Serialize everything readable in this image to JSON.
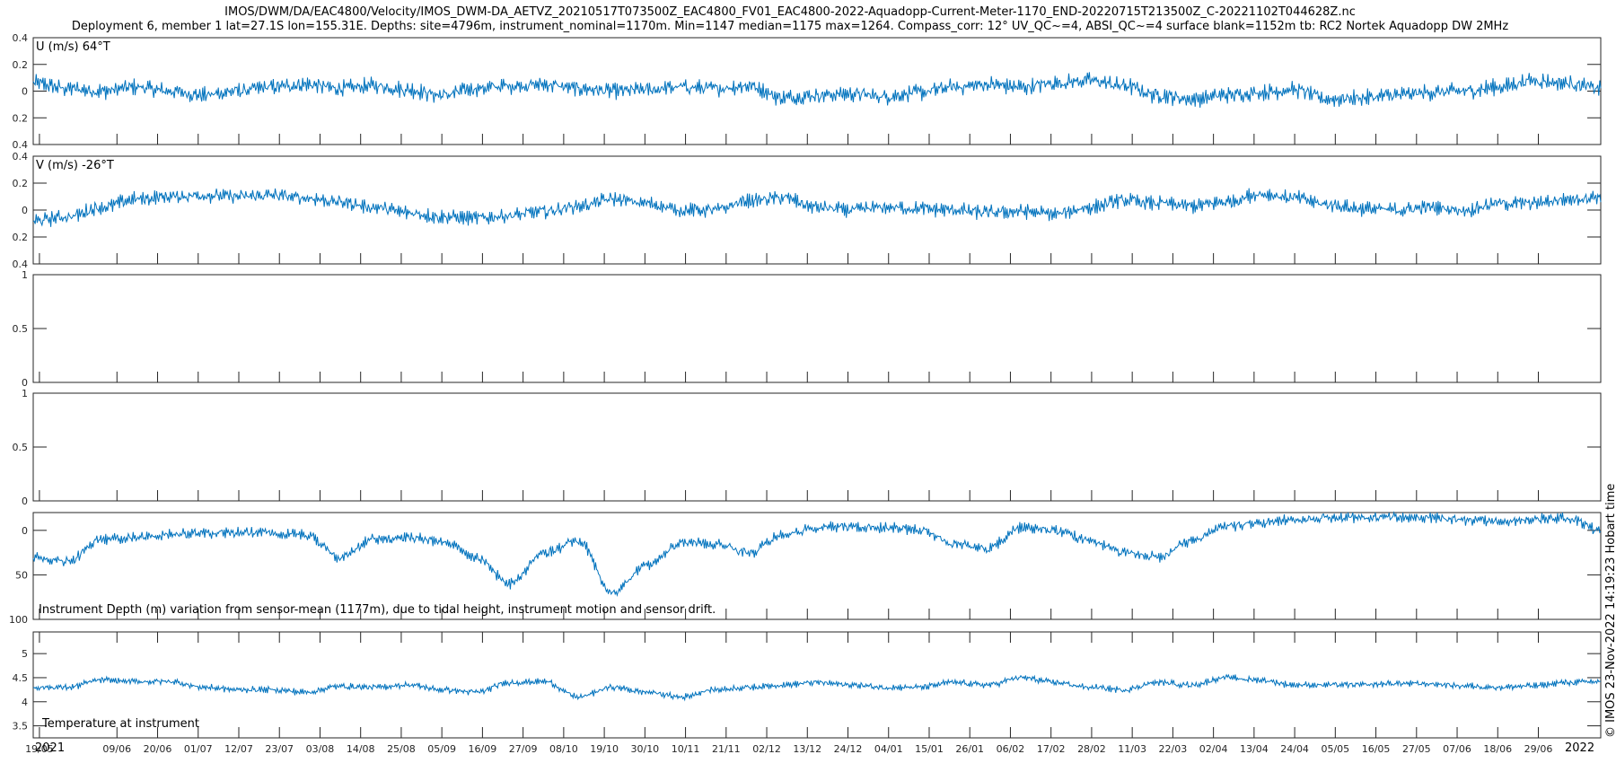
{
  "window": {
    "title_line1": "IMOS/DWM/DA/EAC4800/Velocity/IMOS_DWM-DA_AETVZ_20210517T073500Z_EAC4800_FV01_EAC4800-2022-Aquadopp-Current-Meter-1170_END-20220715T213500Z_C-20221102T044628Z.nc",
    "title_line2": "Deployment 6, member 1 lat=27.1S lon=155.31E. Depths: site=4796m, instrument_nominal=1170m. Min=1147 median=1175 max=1264. Compass_corr: 12° UV_QC~=4, ABSI_QC~=4 surface blank=1152m tb: RC2 Nortek Aquadopp DW 2MHz",
    "credit": "© IMOS 23-Nov-2022 14:19:23 Hobart time"
  },
  "colors": {
    "series": "#0072BD",
    "axes": "#262626",
    "background": "#ffffff"
  },
  "chart_data": [
    {
      "type": "line",
      "label": "U (m/s) 64°T",
      "ylim": [
        -0.4,
        0.4
      ],
      "yticks": [
        -0.4,
        -0.2,
        0,
        0.2,
        0.4
      ],
      "yticklabels": [
        "0.4",
        "0.2",
        "0",
        "0.2",
        "0.4"
      ],
      "x_start": "2021-05-17",
      "x_end": "2022-07-15",
      "series": [
        {
          "values": [
            0.06,
            0.02,
            0.0,
            0.03,
            0.0,
            -0.03,
            0.0,
            0.03,
            0.05,
            0.02,
            0.04,
            0.01,
            -0.03,
            0.02,
            0.04,
            0.05,
            0.02,
            0.0,
            0.01,
            0.03,
            0.02,
            0.04,
            -0.05,
            -0.03,
            -0.02,
            -0.04,
            -0.01,
            0.03,
            0.05,
            0.03,
            0.06,
            0.08,
            0.04,
            -0.03,
            -0.06,
            -0.03,
            -0.01,
            0.01,
            -0.06,
            -0.05,
            -0.03,
            -0.01,
            0.0,
            0.03,
            0.08,
            0.06,
            0.02
          ]
        }
      ]
    },
    {
      "type": "line",
      "label": "V (m/s) -26°T",
      "ylim": [
        -0.4,
        0.4
      ],
      "yticks": [
        -0.4,
        -0.2,
        0,
        0.2,
        0.4
      ],
      "yticklabels": [
        "0.4",
        "0.2",
        "0",
        "0.2",
        "0.4"
      ],
      "x_start": "2021-05-17",
      "x_end": "2022-07-15",
      "series": [
        {
          "values": [
            -0.08,
            -0.05,
            0.02,
            0.08,
            0.1,
            0.11,
            0.1,
            0.11,
            0.09,
            0.06,
            0.02,
            -0.02,
            -0.05,
            -0.06,
            -0.04,
            -0.01,
            0.03,
            0.08,
            0.05,
            0.0,
            0.0,
            0.07,
            0.09,
            0.02,
            0.0,
            0.02,
            0.01,
            0.0,
            -0.02,
            -0.01,
            -0.03,
            0.02,
            0.07,
            0.05,
            0.03,
            0.06,
            0.12,
            0.09,
            0.04,
            0.01,
            0.0,
            0.02,
            0.0,
            0.05,
            0.05,
            0.08,
            0.1
          ]
        }
      ]
    },
    {
      "type": "line",
      "label": "",
      "ylim": [
        0,
        1
      ],
      "yticks": [
        0,
        0.5,
        1
      ],
      "yticklabels": [
        "0",
        "0.5",
        "1"
      ],
      "series": []
    },
    {
      "type": "line",
      "label": "",
      "ylim": [
        0,
        1
      ],
      "yticks": [
        0,
        0.5,
        1
      ],
      "yticklabels": [
        "0",
        "0.5",
        "1"
      ],
      "series": []
    },
    {
      "type": "line",
      "label": "Instrument Depth (m) variation from sensor-mean (1177m), due to tidal height, instrument motion and sensor drift.",
      "ylim": [
        -20,
        100
      ],
      "y_reversed": true,
      "yticks": [
        0,
        50,
        100
      ],
      "yticklabels": [
        "0",
        "50",
        "100"
      ],
      "x_start": "2021-05-17",
      "x_end": "2022-07-15",
      "series": [
        {
          "values": [
            30,
            35,
            10,
            8,
            5,
            3,
            2,
            3,
            5,
            30,
            10,
            8,
            12,
            30,
            60,
            25,
            12,
            70,
            40,
            15,
            15,
            25,
            5,
            -3,
            -4,
            -3,
            0,
            15,
            20,
            -3,
            0,
            12,
            25,
            30,
            12,
            -5,
            -8,
            -12,
            -14,
            -15,
            -15,
            -14,
            -12,
            -10,
            -12,
            -14,
            0
          ]
        }
      ]
    },
    {
      "type": "line",
      "label": "Temperature at instrument",
      "ylim": [
        3.25,
        5.45
      ],
      "yticks": [
        3.5,
        4,
        4.5,
        5
      ],
      "yticklabels": [
        "3.5",
        "4",
        "4.5",
        "5"
      ],
      "x_start": "2021-05-17",
      "x_end": "2022-07-15",
      "series": [
        {
          "values": [
            4.3,
            4.3,
            4.45,
            4.42,
            4.42,
            4.3,
            4.25,
            4.25,
            4.2,
            4.32,
            4.3,
            4.35,
            4.25,
            4.2,
            4.4,
            4.42,
            4.1,
            4.3,
            4.2,
            4.1,
            4.25,
            4.3,
            4.35,
            4.4,
            4.35,
            4.3,
            4.3,
            4.4,
            4.35,
            4.5,
            4.4,
            4.3,
            4.25,
            4.4,
            4.35,
            4.5,
            4.45,
            4.35,
            4.35,
            4.35,
            4.38,
            4.37,
            4.33,
            4.3,
            4.33,
            4.4,
            4.42
          ]
        }
      ]
    }
  ],
  "x_axis": {
    "tick_labels": [
      "19/05",
      "09/06",
      "20/06",
      "01/07",
      "12/07",
      "23/07",
      "03/08",
      "14/08",
      "25/08",
      "05/09",
      "16/09",
      "27/09",
      "08/10",
      "19/10",
      "30/10",
      "10/11",
      "21/11",
      "02/12",
      "13/12",
      "24/12",
      "04/01",
      "15/01",
      "26/01",
      "06/02",
      "17/02",
      "28/02",
      "11/03",
      "22/03",
      "02/04",
      "13/04",
      "24/04",
      "05/05",
      "16/05",
      "27/05",
      "07/06",
      "18/06",
      "29/06"
    ],
    "year_labels": [
      "2021",
      "2022"
    ]
  }
}
